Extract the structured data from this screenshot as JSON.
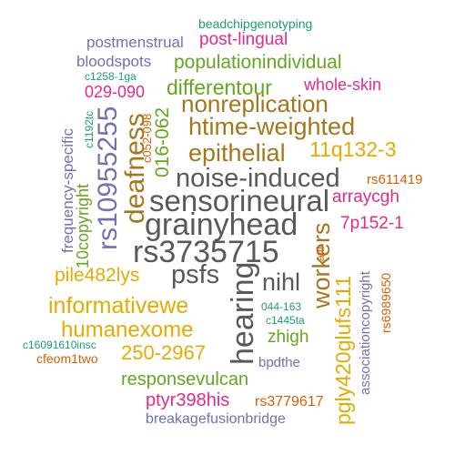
{
  "palette": {
    "gray": "#595959",
    "brown": "#a6761d",
    "orange": "#d95f02",
    "gold": "#e6ab02",
    "green": "#66a61e",
    "purple": "#7570b3",
    "pink": "#e7298a",
    "teal": "#1b9e77"
  },
  "words": [
    {
      "text": "beadchipgenotyping",
      "color": "teal"
    },
    {
      "text": "postmenstrual",
      "color": "purple"
    },
    {
      "text": "post-lingual",
      "color": "pink"
    },
    {
      "text": "bloodspots",
      "color": "purple"
    },
    {
      "text": "populationindividual",
      "color": "green"
    },
    {
      "text": "c1258-1ga",
      "color": "teal"
    },
    {
      "text": "whole-skin",
      "color": "pink"
    },
    {
      "text": "029-090",
      "color": "pink"
    },
    {
      "text": "differentour",
      "color": "green"
    },
    {
      "text": "nonreplication",
      "color": "brown"
    },
    {
      "text": "htime-weighted",
      "color": "brown"
    },
    {
      "text": "epithelial",
      "color": "brown"
    },
    {
      "text": "11q132-3",
      "color": "gold"
    },
    {
      "text": "noise-induced",
      "color": "gray"
    },
    {
      "text": "rs611419",
      "color": "orange"
    },
    {
      "text": "sensorineural",
      "color": "gray"
    },
    {
      "text": "arraycgh",
      "color": "pink"
    },
    {
      "text": "grainyhead",
      "color": "gray"
    },
    {
      "text": "7p152-1",
      "color": "pink"
    },
    {
      "text": "rs3735715",
      "color": "gray"
    },
    {
      "text": "pile482lys",
      "color": "gold"
    },
    {
      "text": "psfs",
      "color": "gray"
    },
    {
      "text": "nihl",
      "color": "gray"
    },
    {
      "text": "informativewe",
      "color": "gold"
    },
    {
      "text": "044-163",
      "color": "teal"
    },
    {
      "text": "c1445ta",
      "color": "teal"
    },
    {
      "text": "humanexome",
      "color": "gold"
    },
    {
      "text": "zhigh",
      "color": "green"
    },
    {
      "text": "c16091610insc",
      "color": "teal"
    },
    {
      "text": "cfeom1two",
      "color": "orange"
    },
    {
      "text": "250-2967",
      "color": "gold"
    },
    {
      "text": "bpdthe",
      "color": "purple"
    },
    {
      "text": "responsevulcan",
      "color": "green"
    },
    {
      "text": "ptyr398his",
      "color": "pink"
    },
    {
      "text": "rs3779617",
      "color": "orange"
    },
    {
      "text": "breakagefusionbridge",
      "color": "purple"
    },
    {
      "text": "frequency-specific",
      "color": "purple"
    },
    {
      "text": "c1192tc",
      "color": "teal"
    },
    {
      "text": "10copyright",
      "color": "green"
    },
    {
      "text": "rs10955255",
      "color": "purple"
    },
    {
      "text": "deafness",
      "color": "brown"
    },
    {
      "text": "016-062",
      "color": "green"
    },
    {
      "text": "c052-098",
      "color": "orange"
    },
    {
      "text": "hearing",
      "color": "gray"
    },
    {
      "text": "workers",
      "color": "brown"
    },
    {
      "text": "pgly420glufs111",
      "color": "gold"
    },
    {
      "text": "attl",
      "color": "orange"
    },
    {
      "text": "associationcopyright",
      "color": "purple"
    },
    {
      "text": "rs6989650",
      "color": "orange"
    }
  ]
}
